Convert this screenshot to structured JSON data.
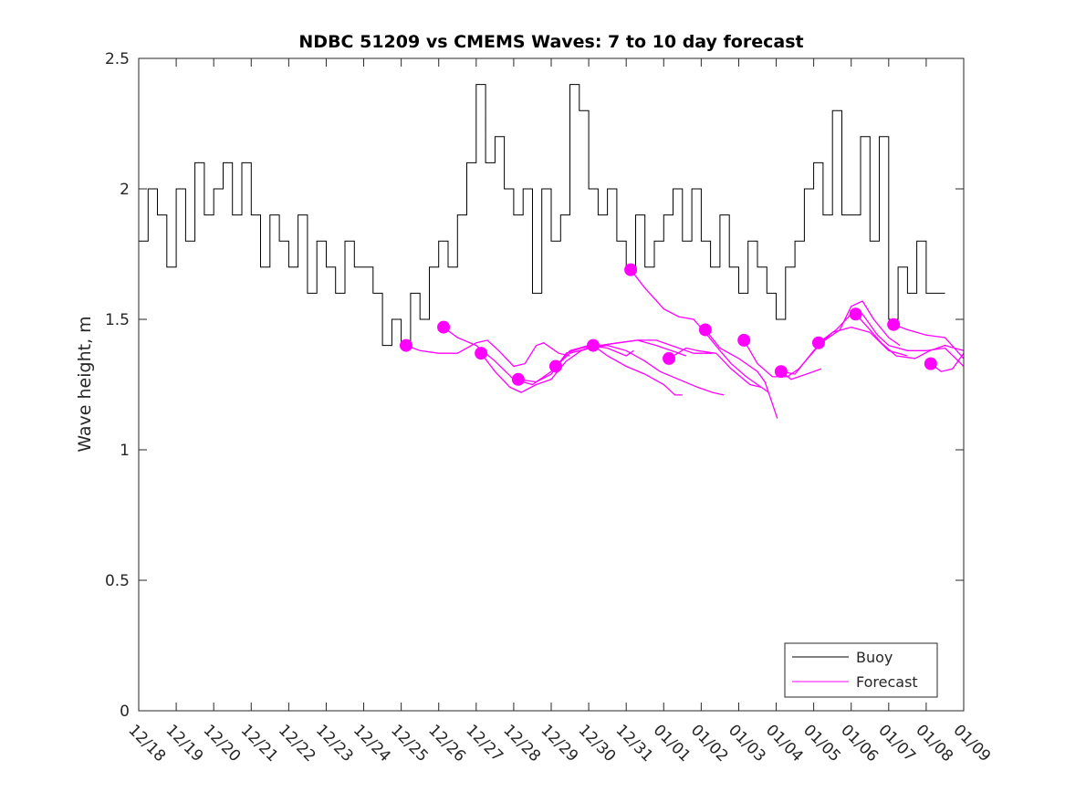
{
  "chart_data": {
    "type": "line",
    "title": "NDBC 51209 vs CMEMS Waves: 7 to 10 day forecast",
    "xlabel": "",
    "ylabel": "Wave height, m",
    "ylim": [
      0,
      2.5
    ],
    "xlim_days": [
      0,
      22
    ],
    "yticks": [
      0,
      0.5,
      1,
      1.5,
      2,
      2.5
    ],
    "ytick_labels": [
      "0",
      "0.5",
      "1",
      "1.5",
      "2",
      "2.5"
    ],
    "xtick_labels": [
      "12/18",
      "12/19",
      "12/20",
      "12/21",
      "12/22",
      "12/23",
      "12/24",
      "12/25",
      "12/26",
      "12/27",
      "12/28",
      "12/29",
      "12/30",
      "12/31",
      "01/01",
      "01/02",
      "01/03",
      "01/04",
      "01/05",
      "01/06",
      "01/07",
      "01/08",
      "01/09"
    ],
    "grid": false,
    "legend": {
      "placement": "bottom-right",
      "entries": [
        "Buoy",
        "Forecast"
      ]
    },
    "colors": {
      "buoy": "#000000",
      "forecast": "#ff00ff"
    },
    "buoy": {
      "name": "Buoy",
      "step_days": 0.25,
      "values": [
        1.8,
        2.0,
        1.9,
        1.7,
        2.0,
        1.8,
        2.1,
        1.9,
        2.0,
        2.1,
        1.9,
        2.1,
        1.9,
        1.7,
        1.9,
        1.8,
        1.7,
        1.9,
        1.6,
        1.8,
        1.7,
        1.6,
        1.8,
        1.7,
        1.7,
        1.6,
        1.4,
        1.5,
        1.4,
        1.6,
        1.5,
        1.7,
        1.8,
        1.7,
        1.9,
        2.1,
        2.4,
        2.1,
        2.2,
        2.0,
        1.9,
        2.0,
        1.6,
        2.0,
        1.8,
        1.9,
        2.4,
        2.3,
        2.0,
        1.9,
        2.0,
        1.8,
        1.7,
        1.9,
        1.7,
        1.8,
        1.9,
        2.0,
        1.8,
        2.0,
        1.8,
        1.7,
        1.9,
        1.7,
        1.6,
        1.8,
        1.7,
        1.6,
        1.5,
        1.7,
        1.8,
        2.0,
        2.1,
        1.9,
        2.3,
        1.9,
        1.9,
        2.2,
        1.8,
        2.2,
        1.5,
        1.7,
        1.6,
        1.8,
        1.6,
        1.6
      ]
    },
    "forecast": {
      "name": "Forecast",
      "segments": [
        [
          [
            7.13,
            1.4
          ],
          [
            7.5,
            1.38
          ],
          [
            8,
            1.37
          ],
          [
            8.5,
            1.37
          ],
          [
            9,
            1.41
          ],
          [
            9.3,
            1.42
          ],
          [
            9.6,
            1.38
          ],
          [
            10,
            1.32
          ],
          [
            10.3,
            1.33
          ],
          [
            10.6,
            1.4
          ],
          [
            10.8,
            1.41
          ],
          [
            11.2,
            1.37
          ],
          [
            11.5,
            1.36
          ]
        ],
        [
          [
            8.13,
            1.47
          ],
          [
            8.5,
            1.43
          ],
          [
            9,
            1.4
          ],
          [
            9.5,
            1.34
          ],
          [
            10,
            1.27
          ],
          [
            10.5,
            1.25
          ],
          [
            11,
            1.3
          ],
          [
            11.5,
            1.38
          ],
          [
            12,
            1.4
          ],
          [
            12.5,
            1.39
          ],
          [
            13,
            1.36
          ],
          [
            13.2,
            1.38
          ]
        ],
        [
          [
            9.13,
            1.37
          ],
          [
            9.5,
            1.3
          ],
          [
            9.9,
            1.24
          ],
          [
            10.2,
            1.22
          ],
          [
            10.6,
            1.25
          ],
          [
            11,
            1.27
          ],
          [
            11.4,
            1.34
          ],
          [
            11.8,
            1.38
          ],
          [
            12.3,
            1.4
          ],
          [
            12.8,
            1.41
          ],
          [
            13.3,
            1.42
          ],
          [
            13.8,
            1.4
          ],
          [
            14.2,
            1.38
          ],
          [
            14.6,
            1.36
          ]
        ],
        [
          [
            10.12,
            1.27
          ],
          [
            10.6,
            1.26
          ],
          [
            11,
            1.29
          ],
          [
            11.4,
            1.37
          ],
          [
            11.8,
            1.39
          ],
          [
            12.3,
            1.4
          ],
          [
            12.8,
            1.41
          ],
          [
            13.3,
            1.42
          ],
          [
            13.8,
            1.42
          ],
          [
            14.4,
            1.39
          ],
          [
            14.8,
            1.37
          ],
          [
            15.3,
            1.37
          ]
        ],
        [
          [
            11.12,
            1.32
          ],
          [
            11.5,
            1.37
          ],
          [
            12,
            1.39
          ],
          [
            12.5,
            1.4
          ],
          [
            13,
            1.38
          ],
          [
            13.5,
            1.34
          ],
          [
            13.9,
            1.3
          ],
          [
            14.4,
            1.27
          ],
          [
            14.9,
            1.24
          ],
          [
            15.3,
            1.22
          ],
          [
            15.6,
            1.21
          ]
        ],
        [
          [
            12.12,
            1.4
          ],
          [
            12.5,
            1.36
          ],
          [
            13,
            1.32
          ],
          [
            13.5,
            1.29
          ],
          [
            14,
            1.25
          ],
          [
            14.3,
            1.21
          ],
          [
            14.5,
            1.21
          ]
        ],
        [
          [
            13.12,
            1.69
          ],
          [
            13.5,
            1.62
          ],
          [
            14,
            1.54
          ],
          [
            14.4,
            1.51
          ],
          [
            14.8,
            1.5
          ],
          [
            15.1,
            1.45
          ],
          [
            15.5,
            1.38
          ],
          [
            15.8,
            1.33
          ],
          [
            16.2,
            1.28
          ],
          [
            16.5,
            1.25
          ],
          [
            16.8,
            1.22
          ]
        ],
        [
          [
            14.14,
            1.35
          ],
          [
            14.6,
            1.39
          ],
          [
            14.9,
            1.38
          ],
          [
            15.4,
            1.37
          ],
          [
            15.8,
            1.31
          ],
          [
            16.3,
            1.25
          ],
          [
            16.6,
            1.24
          ]
        ],
        [
          [
            15.11,
            1.46
          ],
          [
            15.5,
            1.39
          ],
          [
            16,
            1.35
          ],
          [
            16.5,
            1.3
          ],
          [
            16.7,
            1.26
          ],
          [
            17.03,
            1.12
          ]
        ],
        [
          [
            16.14,
            1.42
          ],
          [
            16.5,
            1.33
          ],
          [
            16.9,
            1.28
          ],
          [
            17.3,
            1.28
          ],
          [
            17.6,
            1.31
          ],
          [
            18.2,
            1.41
          ],
          [
            18.7,
            1.46
          ],
          [
            19,
            1.55
          ],
          [
            19.3,
            1.57
          ],
          [
            19.6,
            1.5
          ],
          [
            20,
            1.43
          ],
          [
            20.3,
            1.4
          ]
        ],
        [
          [
            17.13,
            1.3
          ],
          [
            17.4,
            1.27
          ],
          [
            17.8,
            1.29
          ],
          [
            18.2,
            1.31
          ]
        ],
        [
          [
            17.13,
            1.3
          ],
          [
            17.5,
            1.29
          ],
          [
            18,
            1.38
          ],
          [
            18.5,
            1.45
          ],
          [
            19,
            1.47
          ],
          [
            19.5,
            1.45
          ],
          [
            20,
            1.38
          ],
          [
            20.5,
            1.36
          ]
        ],
        [
          [
            18.13,
            1.41
          ],
          [
            18.6,
            1.46
          ],
          [
            19,
            1.52
          ],
          [
            19.3,
            1.52
          ],
          [
            19.7,
            1.44
          ],
          [
            20,
            1.4
          ],
          [
            20.5,
            1.38
          ],
          [
            21,
            1.38
          ],
          [
            21.5,
            1.39
          ],
          [
            22,
            1.32
          ]
        ],
        [
          [
            19.12,
            1.52
          ],
          [
            19.5,
            1.46
          ],
          [
            19.8,
            1.41
          ],
          [
            20.2,
            1.36
          ],
          [
            20.7,
            1.35
          ],
          [
            21.1,
            1.38
          ],
          [
            21.5,
            1.4
          ],
          [
            22,
            1.38
          ]
        ],
        [
          [
            20.13,
            1.48
          ],
          [
            20.5,
            1.46
          ],
          [
            21,
            1.44
          ],
          [
            21.5,
            1.43
          ],
          [
            22,
            1.35
          ]
        ],
        [
          [
            21.12,
            1.33
          ],
          [
            21.4,
            1.3
          ],
          [
            21.7,
            1.31
          ],
          [
            22,
            1.37
          ]
        ]
      ],
      "start_markers": [
        [
          7.13,
          1.4
        ],
        [
          8.13,
          1.47
        ],
        [
          9.13,
          1.37
        ],
        [
          10.12,
          1.27
        ],
        [
          11.12,
          1.32
        ],
        [
          12.12,
          1.4
        ],
        [
          13.12,
          1.69
        ],
        [
          14.14,
          1.35
        ],
        [
          15.11,
          1.46
        ],
        [
          16.14,
          1.42
        ],
        [
          17.13,
          1.3
        ],
        [
          18.13,
          1.41
        ],
        [
          19.12,
          1.52
        ],
        [
          20.13,
          1.48
        ],
        [
          21.12,
          1.33
        ]
      ]
    }
  }
}
